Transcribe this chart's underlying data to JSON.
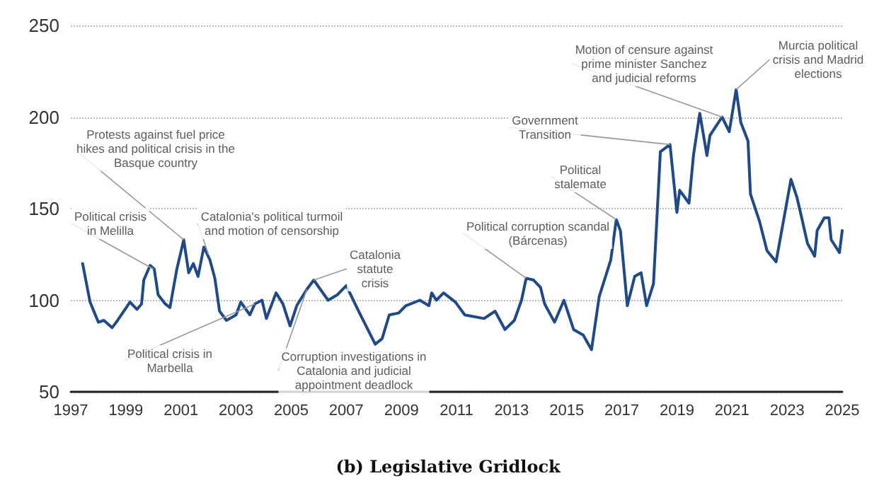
{
  "chart_data": {
    "type": "line",
    "title": "(b) Legislative Gridlock",
    "xlim": [
      1997,
      2025
    ],
    "xticks": [
      1997,
      1999,
      2001,
      2003,
      2005,
      2007,
      2009,
      2011,
      2013,
      2015,
      2017,
      2019,
      2021,
      2023,
      2025
    ],
    "ylim": [
      50,
      250
    ],
    "yticks": [
      50,
      100,
      150,
      200,
      250
    ],
    "grid": "y",
    "marker": "none",
    "line_style": "solid",
    "series": [
      {
        "color": "#1f4a87",
        "x": [
          1997.43,
          1997.7,
          1998.0,
          1998.2,
          1998.5,
          1998.7,
          1999.15,
          1999.4,
          1999.57,
          1999.65,
          1999.88,
          2000.03,
          2000.17,
          2000.43,
          2000.6,
          2000.85,
          2001.1,
          2001.28,
          2001.45,
          2001.62,
          2001.83,
          2002.05,
          2002.23,
          2002.4,
          2002.65,
          2003.0,
          2003.17,
          2003.5,
          2003.68,
          2003.94,
          2004.1,
          2004.45,
          2004.7,
          2004.96,
          2005.2,
          2005.57,
          2005.82,
          2006.34,
          2006.68,
          2007.0,
          2007.45,
          2008.05,
          2008.3,
          2008.56,
          2008.9,
          2009.16,
          2009.67,
          2010.0,
          2010.1,
          2010.27,
          2010.53,
          2010.96,
          2011.3,
          2012.0,
          2012.4,
          2012.76,
          2013.1,
          2013.36,
          2013.53,
          2013.8,
          2014.05,
          2014.2,
          2014.56,
          2014.9,
          2015.25,
          2015.6,
          2015.9,
          2016.18,
          2016.6,
          2016.8,
          2016.95,
          2017.2,
          2017.47,
          2017.7,
          2017.9,
          2018.15,
          2018.4,
          2018.75,
          2019.0,
          2019.1,
          2019.44,
          2019.6,
          2019.83,
          2020.09,
          2020.2,
          2020.64,
          2020.9,
          2021.15,
          2021.32,
          2021.58,
          2021.67,
          2022.0,
          2022.27,
          2022.6,
          2023.14,
          2023.36,
          2023.53,
          2023.74,
          2024.0,
          2024.09,
          2024.35,
          2024.52,
          2024.6,
          2024.9,
          2025.0
        ],
        "values": [
          120,
          99,
          88,
          89,
          85,
          89,
          99,
          95,
          98,
          111,
          119,
          117,
          103,
          98,
          96,
          117,
          133,
          115,
          120,
          113,
          129,
          122,
          112,
          94,
          89,
          92,
          99,
          92,
          98,
          100,
          90,
          104,
          98,
          86,
          97,
          106,
          111,
          100,
          103,
          108,
          94,
          76,
          79,
          92,
          93,
          97,
          100,
          97,
          104,
          100,
          104,
          99,
          92,
          90,
          94,
          84,
          89,
          100,
          112,
          111,
          107,
          98,
          88,
          100,
          84,
          81,
          73,
          102,
          122,
          144,
          138,
          97,
          113,
          115,
          97,
          109,
          181,
          185,
          148,
          160,
          153,
          179,
          202,
          179,
          190,
          200,
          192,
          215,
          197,
          187,
          158,
          143,
          127,
          121,
          166,
          156,
          145,
          131,
          124,
          138,
          145,
          145,
          133,
          126,
          138
        ]
      }
    ],
    "annotations": [
      {
        "text": "Political crisis\nin Melilla",
        "x": 2000.0,
        "y": 117
      },
      {
        "text": "Protests against fuel price\nhikes and political crisis in the\nBasque country",
        "x": 2001.1,
        "y": 133
      },
      {
        "text": "Catalonia's political turmoil\nand motion of censorship",
        "x": 2002.0,
        "y": 125
      },
      {
        "text": "Political crisis in\nMarbella",
        "x": 2003.68,
        "y": 98
      },
      {
        "text": "Corruption investigations in\nCatalonia and judicial\nappointment deadlock",
        "x": 2005.57,
        "y": 106
      },
      {
        "text": "Catalonia\nstatute\ncrisis",
        "x": 2005.82,
        "y": 111
      },
      {
        "text": "Political corruption scandal\n(Bárcenas)",
        "x": 2013.53,
        "y": 112
      },
      {
        "text": "Government\nTransition",
        "x": 2018.75,
        "y": 185
      },
      {
        "text": "Political\nstalemate",
        "x": 2016.8,
        "y": 144
      },
      {
        "text": "Motion of censure against\nprime minister Sanchez\nand judicial reforms",
        "x": 2020.64,
        "y": 200
      },
      {
        "text": "Murcia political\ncrisis and Madrid\nelections",
        "x": 2021.15,
        "y": 215
      }
    ]
  }
}
